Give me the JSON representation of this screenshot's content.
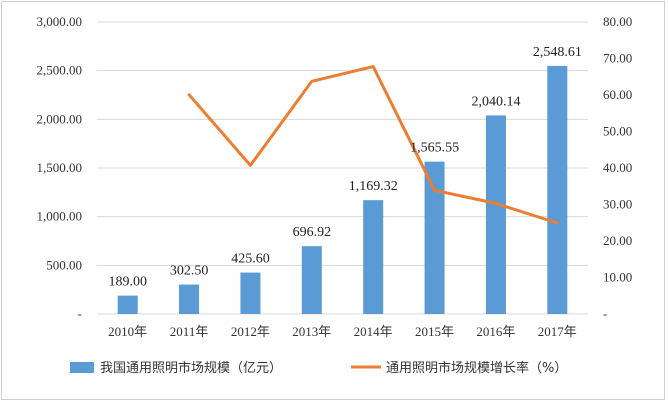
{
  "chart_data": {
    "type": "bar+line",
    "categories": [
      "2010年",
      "2011年",
      "2012年",
      "2013年",
      "2014年",
      "2015年",
      "2016年",
      "2017年"
    ],
    "bar_series": {
      "name": "我国通用照明市场规模（亿元）",
      "values": [
        189.0,
        302.5,
        425.6,
        696.92,
        1169.32,
        1565.55,
        2040.14,
        2548.61
      ],
      "labels": [
        "189.00",
        "302.50",
        "425.60",
        "696.92",
        "1,169.32",
        "1,565.55",
        "2,040.14",
        "2,548.61"
      ],
      "color": "#5b9bd5"
    },
    "line_series": {
      "name": "通用照明市场规模增长率（%）",
      "values": [
        null,
        60.05,
        40.7,
        63.75,
        67.78,
        33.88,
        30.31,
        24.92
      ],
      "color": "#ed7d31"
    },
    "y_left": {
      "range": [
        0,
        3000
      ],
      "ticks": [
        "-",
        "500.00",
        "1,000.00",
        "1,500.00",
        "2,000.00",
        "2,500.00",
        "3,000.00"
      ]
    },
    "y_right": {
      "range": [
        0,
        80
      ],
      "ticks": [
        "-",
        "10.00",
        "20.00",
        "30.00",
        "40.00",
        "50.00",
        "60.00",
        "70.00",
        "80.00"
      ]
    },
    "grid": true,
    "legend_position": "bottom"
  }
}
